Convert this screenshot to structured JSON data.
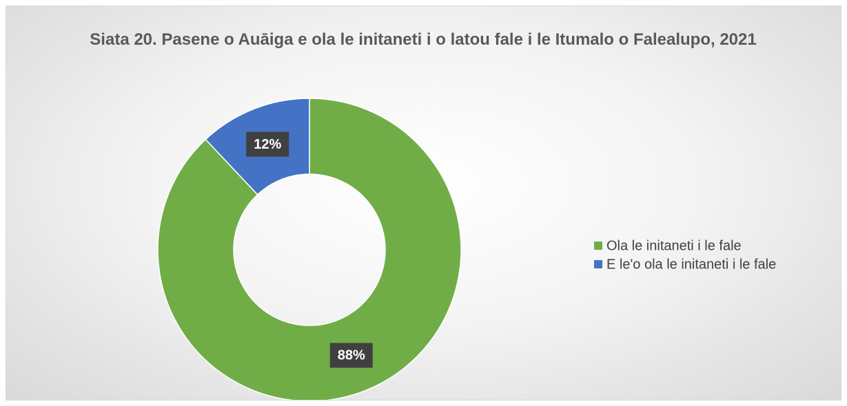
{
  "chart_data": {
    "type": "donut",
    "title": "Siata 20. Pasene o Auāiga e ola le initaneti i o latou fale i le Itumalo o Falealupo, 2021",
    "categories": [
      "Ola le initaneti i le fale",
      "E le'o ola le initaneti i le fale"
    ],
    "values": [
      88,
      12
    ],
    "value_labels": [
      "88%",
      "12%"
    ],
    "colors": [
      "#70ad47",
      "#4472c4"
    ],
    "legend": "right"
  }
}
